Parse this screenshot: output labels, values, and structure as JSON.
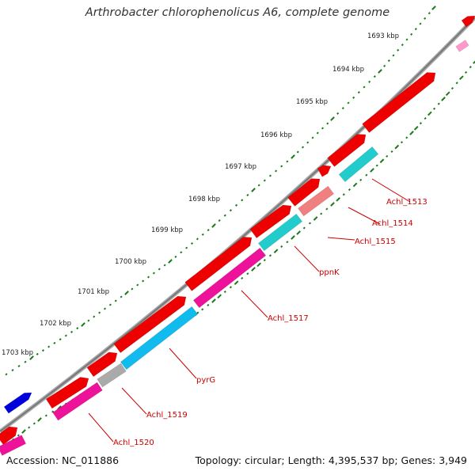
{
  "title": "Arthrobacter chlorophenolicus A6, complete genome",
  "accession": "Accession: NC_011886",
  "summary": "Topology: circular; Length: 4,395,537 bp; Genes: 3,949",
  "tick_labels": [
    "1693 kbp",
    "1694 kbp",
    "1695 kbp",
    "1696 kbp",
    "1697 kbp",
    "1698 kbp",
    "1699 kbp",
    "1700 kbp",
    "1701 kbp",
    "1702 kbp",
    "1703 kbp"
  ],
  "gene_labels": [
    "Achl_1513",
    "Achl_1514",
    "Achl_1515",
    "ppnK",
    "Achl_1517",
    "pyrG",
    "Achl_1519",
    "Achl_1520"
  ],
  "colors": {
    "backbone": "#888888",
    "cds": "#ee0000",
    "tick_dots": "#1a7a1a",
    "label": "#cc0000",
    "cyan": "#22cccc",
    "salmon": "#f08080",
    "magenta": "#ee1199",
    "sky": "#11bbee",
    "gray": "#aaaaaa",
    "blue": "#0000dd",
    "pink": "#ff99cc"
  }
}
